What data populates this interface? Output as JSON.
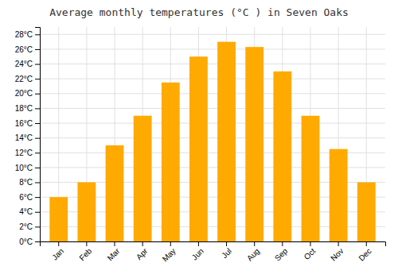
{
  "chart_data": {
    "type": "bar",
    "title": "Average monthly temperatures (°C ) in Seven Oaks",
    "categories": [
      "Jan",
      "Feb",
      "Mar",
      "Apr",
      "May",
      "Jun",
      "Jul",
      "Aug",
      "Sep",
      "Oct",
      "Nov",
      "Dec"
    ],
    "values": [
      6.0,
      8.0,
      13.0,
      17.0,
      21.5,
      25.0,
      27.0,
      26.3,
      23.0,
      17.0,
      12.5,
      8.0
    ],
    "color": "#FFAA00",
    "ylim": [
      0,
      29
    ],
    "yticks": [
      {
        "value": 0,
        "label": "0°C"
      },
      {
        "value": 2,
        "label": "2°C"
      },
      {
        "value": 4,
        "label": "4°C"
      },
      {
        "value": 6,
        "label": "6°C"
      },
      {
        "value": 8,
        "label": "8°C"
      },
      {
        "value": 10,
        "label": "10°C"
      },
      {
        "value": 12,
        "label": "12°C"
      },
      {
        "value": 14,
        "label": "14°C"
      },
      {
        "value": 16,
        "label": "16°C"
      },
      {
        "value": 18,
        "label": "18°C"
      },
      {
        "value": 20,
        "label": "20°C"
      },
      {
        "value": 22,
        "label": "22°C"
      },
      {
        "value": 24,
        "label": "24°C"
      },
      {
        "value": 26,
        "label": "26°C"
      },
      {
        "value": 28,
        "label": "28°C"
      }
    ],
    "grid": true
  }
}
